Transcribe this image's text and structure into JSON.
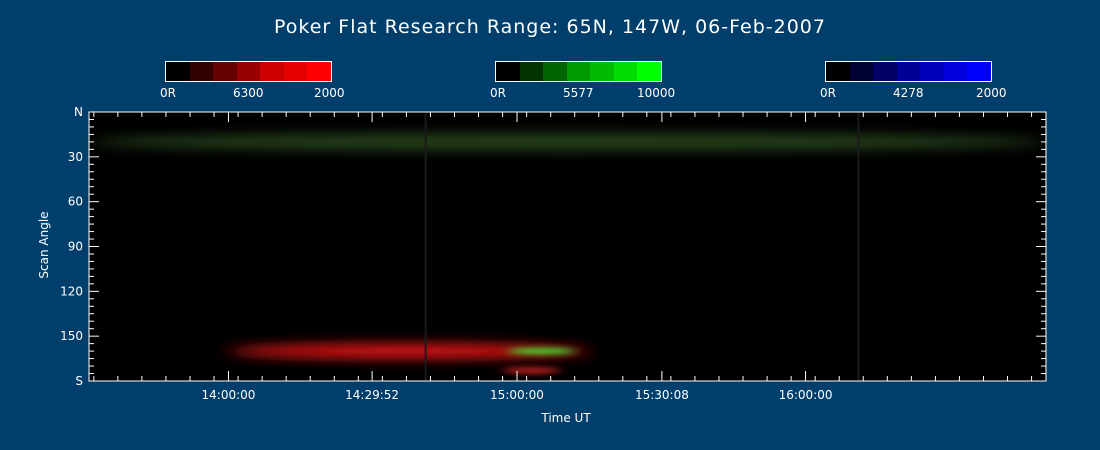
{
  "title": "Poker Flat Research Range: 65N, 147W, 06-Feb-2007",
  "colorbars": [
    {
      "name": "red",
      "min_label": "0R",
      "mid_label": "6300",
      "max_label": "2000",
      "colors": [
        "#000000",
        "#330000",
        "#660000",
        "#990000",
        "#cc0000",
        "#e60000",
        "#ff0000"
      ]
    },
    {
      "name": "green",
      "min_label": "0R",
      "mid_label": "5577",
      "max_label": "10000",
      "colors": [
        "#000000",
        "#003300",
        "#006600",
        "#009900",
        "#00bb00",
        "#00dd00",
        "#00ff00"
      ]
    },
    {
      "name": "blue",
      "min_label": "0R",
      "mid_label": "4278",
      "max_label": "2000",
      "colors": [
        "#000000",
        "#000033",
        "#000066",
        "#000099",
        "#0000bb",
        "#0000dd",
        "#0000ff"
      ]
    }
  ],
  "chart_data": {
    "type": "heatmap",
    "xlabel": "Time UT",
    "ylabel": "Scan Angle",
    "x_ticks": [
      "14:00:00",
      "14:29:52",
      "15:00:00",
      "15:30:08",
      "16:00:00"
    ],
    "x_tick_minutes": [
      840,
      869.87,
      900,
      930.13,
      960
    ],
    "xlim_minutes": [
      811,
      1010
    ],
    "y_ticks": [
      "N",
      "30",
      "60",
      "90",
      "120",
      "150",
      "S"
    ],
    "y_tick_values": [
      0,
      30,
      60,
      90,
      120,
      150,
      180
    ],
    "ylim": [
      0,
      180
    ],
    "features": [
      {
        "emission": "5577",
        "color": "#3d6b2c",
        "t_start": 811,
        "t_end": 1010,
        "angle_center": 20,
        "angle_width": 12,
        "intensity": 0.6
      },
      {
        "emission": "6300",
        "color": "#ff1a1a",
        "t_start": 840,
        "t_end": 915,
        "angle_center": 160,
        "angle_width": 10,
        "intensity": 0.85
      },
      {
        "emission": "5577",
        "color": "#33ff33",
        "t_start": 898,
        "t_end": 912,
        "angle_center": 160,
        "angle_width": 4,
        "intensity": 0.9
      },
      {
        "emission": "6300",
        "color": "#ff2a2a",
        "t_start": 897,
        "t_end": 909,
        "angle_center": 173,
        "angle_width": 4,
        "intensity": 0.8
      }
    ],
    "gaps_minutes": [
      881,
      971
    ]
  }
}
